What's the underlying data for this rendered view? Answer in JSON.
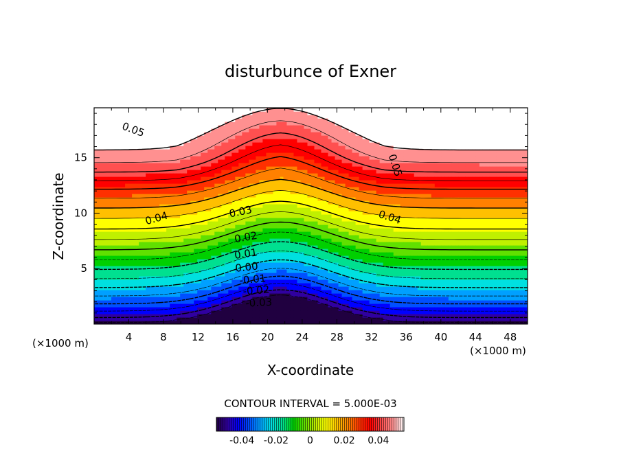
{
  "chart_data": {
    "type": "heatmap",
    "title": "disturbunce of Exner",
    "xlabel": "X-coordinate",
    "ylabel": "Z-coordinate",
    "x_unit_left": "(×1000 m)",
    "x_unit_right": "(×1000 m)",
    "xlim": [
      0,
      50
    ],
    "ylim": [
      0,
      19.5
    ],
    "x_ticks": [
      4,
      8,
      12,
      16,
      20,
      24,
      28,
      32,
      36,
      40,
      44,
      48
    ],
    "x_tick_labels": [
      "4",
      "8",
      "12",
      "16",
      "20",
      "24",
      "28",
      "32",
      "36",
      "40",
      "44",
      "48"
    ],
    "y_ticks": [
      5,
      10,
      15
    ],
    "y_tick_labels": [
      "5",
      "10",
      "15"
    ],
    "contour_interval_text": "CONTOUR INTERVAL = 5.000E-03",
    "contour_interval": 0.005,
    "value_range": [
      -0.05,
      0.05
    ],
    "contour_labels": [
      {
        "text": "0.05",
        "x": 4.5,
        "z": 17.5,
        "angle": 20
      },
      {
        "text": "0.05",
        "x": 34.7,
        "z": 14.3,
        "angle": 72
      },
      {
        "text": "0.04",
        "x": 7.2,
        "z": 9.5,
        "angle": -16
      },
      {
        "text": "0.04",
        "x": 34.1,
        "z": 9.6,
        "angle": 18
      },
      {
        "text": "0.03",
        "x": 16.9,
        "z": 10.1,
        "angle": -12
      },
      {
        "text": "0.02",
        "x": 17.5,
        "z": 7.8,
        "angle": -10
      },
      {
        "text": "0.01",
        "x": 17.5,
        "z": 6.3,
        "angle": -8
      },
      {
        "text": "0.00",
        "x": 17.6,
        "z": 5.1,
        "angle": -6
      },
      {
        "text": "-0.01",
        "x": 18.3,
        "z": 4.0,
        "angle": -5
      },
      {
        "text": "-0.02",
        "x": 18.7,
        "z": 3.0,
        "angle": -4
      },
      {
        "text": "-0.03",
        "x": 19.0,
        "z": 1.9,
        "angle": -3
      }
    ],
    "colorbar": {
      "tick_values": [
        -0.04,
        -0.02,
        0,
        0.02,
        0.04
      ],
      "tick_labels": [
        "-0.04",
        "-0.02",
        "0",
        "0.02",
        "0.04"
      ]
    },
    "colors": {
      "cmap": [
        "#200040",
        "#3000a0",
        "#0000ff",
        "#0050ff",
        "#00a0ff",
        "#00e0e0",
        "#00e090",
        "#00d000",
        "#60e000",
        "#c0f000",
        "#ffff00",
        "#ffc000",
        "#ff8000",
        "#ff3000",
        "#ff0000",
        "#ff5050",
        "#ff9090",
        "#ffffff"
      ]
    }
  }
}
